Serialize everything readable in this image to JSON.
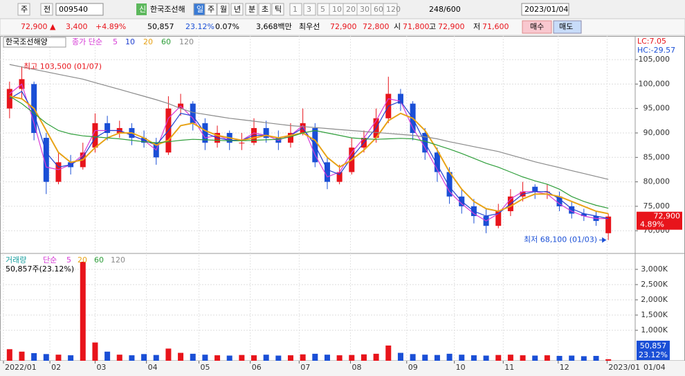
{
  "toolbar": {
    "row1": [
      "주",
      "전",
      "009540",
      "신",
      "한국조선해",
      "일",
      "주",
      "월",
      "년",
      "분",
      "초",
      "틱",
      "1",
      "3",
      "5",
      "10",
      "20",
      "30",
      "60",
      "120",
      "248/600",
      "2023/01/04"
    ],
    "row2": [
      "72,900 ▲",
      "3,400",
      "+4.89%",
      "50,857",
      "23.12%",
      "0.07%",
      "3,668백만",
      "최우선",
      "72,900",
      "72,800",
      "시",
      "71,800",
      "고",
      "72,900",
      "저",
      "71,600",
      "매수",
      "매도"
    ]
  },
  "chart_data": [
    {
      "type": "candlestick",
      "title": "한국조선해양",
      "ma_label": "종가 단순",
      "open": [
        95000,
        99000,
        100000,
        89000,
        80000,
        84000,
        83000,
        87000,
        92000,
        90000,
        91000,
        89000,
        88000,
        86000,
        95000,
        96000,
        92000,
        88000,
        90000,
        88000,
        88000,
        91000,
        89000,
        88000,
        90000,
        91000,
        84000,
        80000,
        82000,
        87000,
        89000,
        93000,
        98000,
        96000,
        90000,
        86000,
        82000,
        77000,
        75000,
        73000,
        71000,
        74000,
        77000,
        79000,
        78000,
        77000,
        75000,
        73500,
        73000,
        69500
      ],
      "high": [
        100500,
        103500,
        100500,
        90000,
        86000,
        85500,
        88000,
        94000,
        93500,
        92500,
        92000,
        90500,
        89000,
        97500,
        98000,
        96500,
        93000,
        91500,
        90500,
        90000,
        93000,
        92500,
        90500,
        92000,
        95000,
        92000,
        85000,
        83500,
        89000,
        90500,
        95000,
        101500,
        99000,
        96500,
        91000,
        87000,
        83000,
        78500,
        76500,
        74500,
        75500,
        78500,
        80000,
        79500,
        79500,
        78000,
        76000,
        74500,
        74000,
        73500
      ],
      "low": [
        93000,
        97000,
        88500,
        77500,
        79500,
        81500,
        82500,
        86000,
        88500,
        89000,
        87500,
        87000,
        83500,
        85500,
        93500,
        90500,
        86500,
        87000,
        86500,
        86500,
        87500,
        88000,
        86500,
        87000,
        89500,
        83000,
        78500,
        79500,
        81500,
        86000,
        88000,
        92000,
        94500,
        88500,
        84500,
        80000,
        75500,
        73500,
        71500,
        69500,
        70500,
        73000,
        76000,
        76500,
        76500,
        74000,
        72500,
        72000,
        71000,
        68100
      ],
      "close": [
        99000,
        101000,
        90000,
        80000,
        84000,
        83000,
        86000,
        92000,
        90000,
        91000,
        89000,
        88000,
        85000,
        95000,
        96000,
        92000,
        88000,
        90000,
        88000,
        88000,
        91000,
        89000,
        88000,
        90000,
        92000,
        84000,
        80000,
        82000,
        87000,
        89000,
        93000,
        98000,
        96000,
        90000,
        86000,
        82000,
        77000,
        75000,
        73000,
        71000,
        74000,
        77000,
        78000,
        78000,
        78000,
        75000,
        73500,
        73000,
        72000,
        72900
      ],
      "series": [
        {
          "name": "5",
          "color": "#d63ad6",
          "values": [
            98000,
            100000,
            92000,
            83000,
            82500,
            83500,
            85500,
            90500,
            90500,
            90500,
            89500,
            88500,
            86500,
            93000,
            95500,
            93000,
            89000,
            89500,
            88500,
            88500,
            90000,
            89500,
            88500,
            89500,
            91500,
            85500,
            81000,
            82000,
            86000,
            89000,
            92500,
            97000,
            96500,
            91000,
            87000,
            82500,
            78000,
            75500,
            73500,
            72000,
            73500,
            76500,
            78000,
            78000,
            77500,
            75500,
            74000,
            73000,
            72500,
            72500
          ]
        },
        {
          "name": "10",
          "color": "#1f3fd0",
          "values": [
            97000,
            98500,
            94000,
            86000,
            83000,
            83500,
            85000,
            89000,
            90500,
            90500,
            89500,
            88500,
            87500,
            90500,
            94000,
            93500,
            90000,
            89000,
            88500,
            88500,
            89500,
            89500,
            89000,
            89500,
            91000,
            87500,
            82500,
            81500,
            85000,
            88000,
            91000,
            95500,
            96500,
            93000,
            88000,
            83500,
            79000,
            76000,
            74000,
            73000,
            73500,
            75500,
            77500,
            78000,
            78000,
            76500,
            74500,
            73500,
            73000,
            72500
          ]
        },
        {
          "name": "20",
          "color": "#e8a317",
          "values": [
            97500,
            97000,
            95000,
            90500,
            86000,
            84000,
            84500,
            87000,
            89000,
            90000,
            90000,
            89000,
            87500,
            88500,
            91500,
            92000,
            90500,
            89500,
            89000,
            88500,
            89000,
            89500,
            89000,
            89500,
            90000,
            88500,
            85000,
            83000,
            84500,
            86500,
            89000,
            92500,
            94000,
            93000,
            90500,
            86500,
            82000,
            78500,
            76000,
            74500,
            74000,
            75000,
            76500,
            77500,
            77500,
            77000,
            76000,
            75000,
            74000,
            73500
          ]
        },
        {
          "name": "60",
          "color": "#2e9e3a",
          "values": [
            97500,
            96000,
            94000,
            92000,
            90500,
            89800,
            89400,
            89200,
            89000,
            88800,
            88500,
            88200,
            88000,
            88200,
            88500,
            88700,
            88600,
            88500,
            88400,
            88400,
            88500,
            88600,
            88700,
            89200,
            90000,
            90500,
            90000,
            89500,
            89000,
            88800,
            88700,
            88800,
            88900,
            88800,
            88300,
            87500,
            86700,
            85800,
            84800,
            83800,
            83000,
            82000,
            81000,
            80200,
            79500,
            78500,
            77000,
            76000,
            75200,
            74600
          ]
        },
        {
          "name": "120",
          "color": "#8a8a8a",
          "values": [
            104000,
            103500,
            103000,
            102500,
            102000,
            101500,
            101000,
            100300,
            99600,
            98900,
            98200,
            97500,
            96800,
            96000,
            95000,
            94200,
            93800,
            93400,
            93000,
            92700,
            92400,
            92100,
            91800,
            91500,
            91300,
            91100,
            90900,
            90700,
            90500,
            90300,
            90100,
            89900,
            89700,
            89500,
            89200,
            88800,
            88200,
            87700,
            87200,
            86700,
            86200,
            85500,
            84800,
            84100,
            83500,
            82900,
            82300,
            81700,
            81100,
            80500
          ]
        }
      ],
      "up_color": "#e8141b",
      "down_color": "#1a4fd6",
      "ylim": [
        65500,
        109400
      ],
      "yticks": [
        {
          "value": 70000,
          "label": "70,000"
        },
        {
          "value": 75000,
          "label": "75,000"
        },
        {
          "value": 80000,
          "label": "80,000"
        },
        {
          "value": 85000,
          "label": "85,000"
        },
        {
          "value": 90000,
          "label": "90,000"
        },
        {
          "value": 95000,
          "label": "95,000"
        },
        {
          "value": 100000,
          "label": "100,000"
        },
        {
          "value": 105000,
          "label": "105,000"
        }
      ],
      "xlim": [
        0,
        50
      ],
      "xticks": [
        {
          "value": 0,
          "label": "2022/01"
        },
        {
          "value": 3.8,
          "label": "02"
        },
        {
          "value": 7.5,
          "label": "03"
        },
        {
          "value": 11.7,
          "label": "04"
        },
        {
          "value": 16,
          "label": "05"
        },
        {
          "value": 20.2,
          "label": "06"
        },
        {
          "value": 24.2,
          "label": "07"
        },
        {
          "value": 28.4,
          "label": "08"
        },
        {
          "value": 33,
          "label": "09"
        },
        {
          "value": 36.9,
          "label": "10"
        },
        {
          "value": 40.9,
          "label": "11"
        },
        {
          "value": 45.4,
          "label": "12"
        },
        {
          "value": 49.4,
          "label": "2023/01"
        }
      ],
      "x_last_label": "01/04",
      "right_labels": [
        "LC:7.05",
        "HC:-29.57"
      ],
      "high_annotation": "최고 103,500 (01/07)",
      "low_annotation": "최저 68,100 (01/03)",
      "last_label": "72,900",
      "change_label": "4.89%"
    },
    {
      "type": "bar",
      "title": "거래량",
      "ma_label": "단순",
      "ma_legend": [
        {
          "name": "5",
          "color": "#d63ad6"
        },
        {
          "name": "20",
          "color": "#e8a317"
        },
        {
          "name": "60",
          "color": "#2e9e3a"
        },
        {
          "name": "120",
          "color": "#8a8a8a"
        }
      ],
      "info_label": "50,857주(23.12%)",
      "values": [
        380000,
        300000,
        250000,
        220000,
        200000,
        180000,
        3250000,
        600000,
        300000,
        200000,
        180000,
        220000,
        190000,
        400000,
        260000,
        230000,
        200000,
        180000,
        170000,
        190000,
        180000,
        200000,
        170000,
        180000,
        210000,
        230000,
        200000,
        180000,
        190000,
        210000,
        230000,
        500000,
        260000,
        220000,
        200000,
        190000,
        230000,
        200000,
        180000,
        170000,
        190000,
        200000,
        180000,
        170000,
        180000,
        160000,
        170000,
        150000,
        160000,
        50857
      ],
      "ylim": [
        0,
        3500000
      ],
      "yticks": [
        {
          "value": 1000000,
          "label": "1,000K"
        },
        {
          "value": 1500000,
          "label": "1,500K"
        },
        {
          "value": 2000000,
          "label": "2,000K"
        },
        {
          "value": 2500000,
          "label": "2,500K"
        },
        {
          "value": 3000000,
          "label": "3,000K"
        }
      ],
      "last_label": "50,857",
      "ratio_label": "23.12%"
    }
  ]
}
